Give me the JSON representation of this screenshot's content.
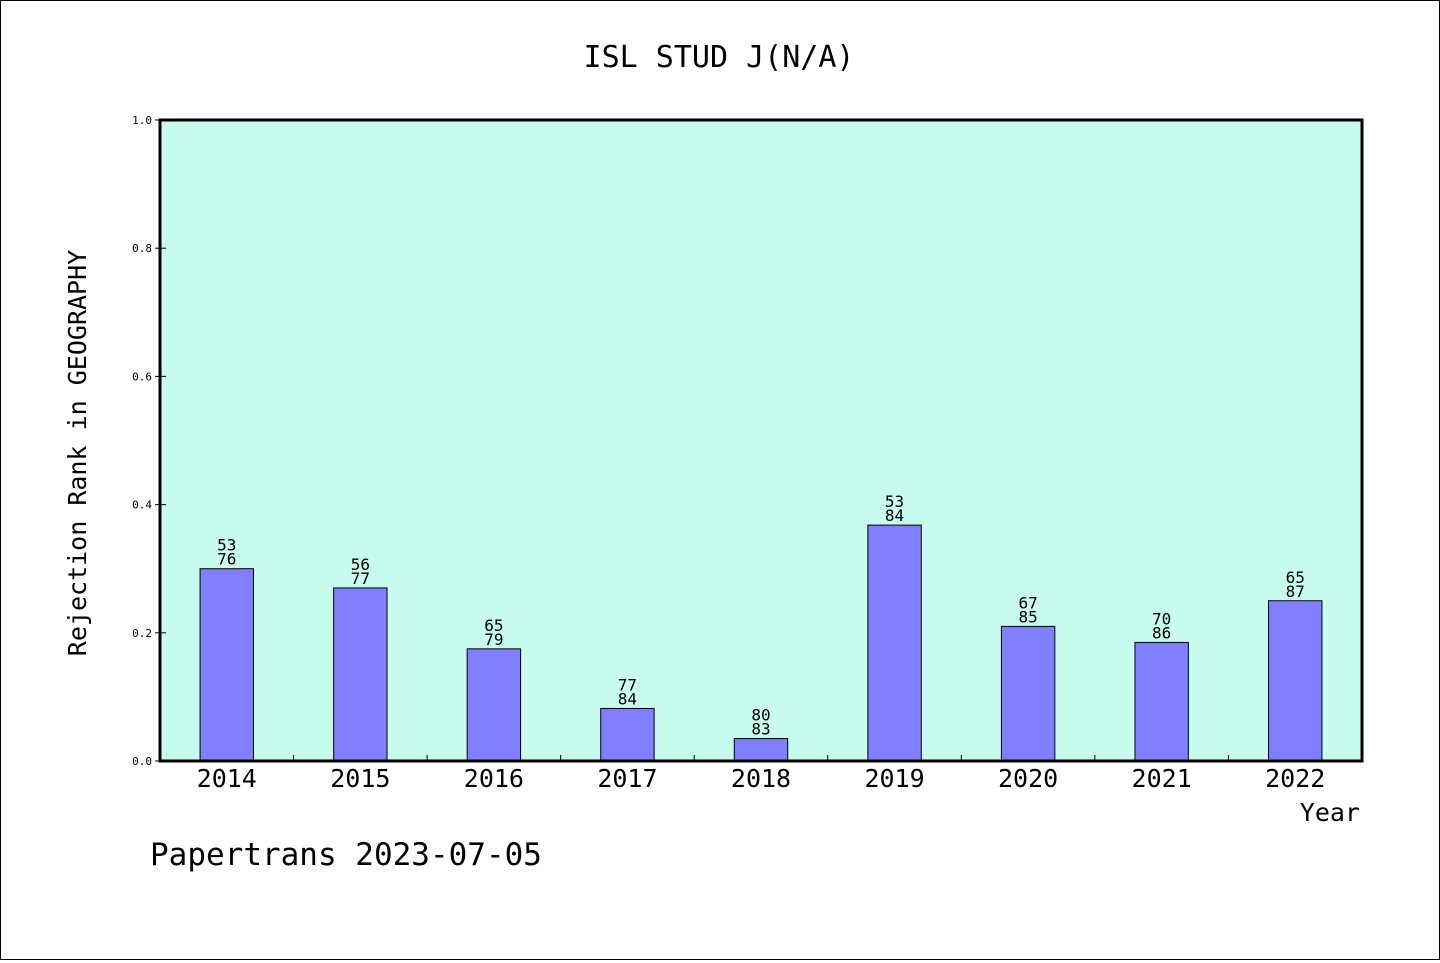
{
  "chart_data": {
    "type": "bar",
    "title": "ISL STUD J(N/A)",
    "xlabel": "Year",
    "ylabel": "Rejection Rank in GEOGRAPHY",
    "categories": [
      "2014",
      "2015",
      "2016",
      "2017",
      "2018",
      "2019",
      "2020",
      "2021",
      "2022"
    ],
    "values": [
      0.3,
      0.27,
      0.175,
      0.082,
      0.035,
      0.368,
      0.21,
      0.185,
      0.25
    ],
    "bar_labels": [
      [
        "53",
        "76"
      ],
      [
        "56",
        "77"
      ],
      [
        "65",
        "79"
      ],
      [
        "77",
        "84"
      ],
      [
        "80",
        "83"
      ],
      [
        "53",
        "84"
      ],
      [
        "67",
        "85"
      ],
      [
        "70",
        "86"
      ],
      [
        "65",
        "87"
      ]
    ],
    "ylim": [
      0,
      1.0
    ],
    "yticks": [
      "0.0",
      "0.2",
      "0.4",
      "0.6",
      "0.8",
      "1.0"
    ],
    "grid": false,
    "plot_background": "#c8fcee",
    "bar_color": "#8080ff"
  },
  "footer": {
    "text": "Papertrans 2023-07-05"
  }
}
